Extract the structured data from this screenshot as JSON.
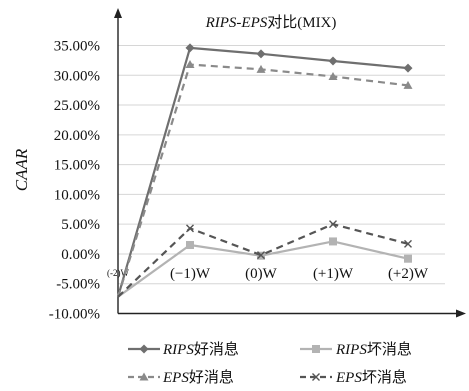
{
  "chart_data": {
    "type": "line",
    "title": {
      "italic": "RIPS-EPS",
      "rest": "对比(MIX)"
    },
    "ylabel": "CAAR",
    "xlabel": "",
    "ylim": [
      -10,
      35
    ],
    "y_ticks": [
      "-10.00%",
      "-5.00%",
      "0.00%",
      "5.00%",
      "10.00%",
      "15.00%",
      "20.00%",
      "25.00%",
      "30.00%",
      "35.00%"
    ],
    "y_tick_values": [
      -10,
      -5,
      0,
      5,
      10,
      15,
      20,
      25,
      30,
      35
    ],
    "categories": [
      "(-2)W",
      "(−1)W",
      "(0)W",
      "(+1)W",
      "(+2)W"
    ],
    "grid": "horizontal",
    "legend_position": "bottom",
    "series": [
      {
        "name": "RIPS好消息",
        "name_italic": "RIPS",
        "name_rest": "好消息",
        "color": "#6f6f6f",
        "style": "solid",
        "marker": "diamond",
        "values": [
          -7.2,
          34.6,
          33.6,
          32.4,
          31.2
        ]
      },
      {
        "name": "RIPS坏消息",
        "name_italic": "RIPS",
        "name_rest": "坏消息",
        "color": "#b3b3b3",
        "style": "solid",
        "marker": "square",
        "values": [
          -7.2,
          1.5,
          -0.3,
          2.1,
          -0.8
        ]
      },
      {
        "name": "EPS好消息",
        "name_italic": "EPS",
        "name_rest": "好消息",
        "color": "#8a8a8a",
        "style": "dashed",
        "marker": "triangle",
        "values": [
          -7.2,
          31.8,
          31.0,
          29.8,
          28.3
        ]
      },
      {
        "name": "EPS坏消息",
        "name_italic": "EPS",
        "name_rest": "坏消息",
        "color": "#555555",
        "style": "dashed",
        "marker": "x",
        "values": [
          -7.2,
          4.3,
          -0.2,
          5.0,
          1.7
        ]
      }
    ]
  }
}
